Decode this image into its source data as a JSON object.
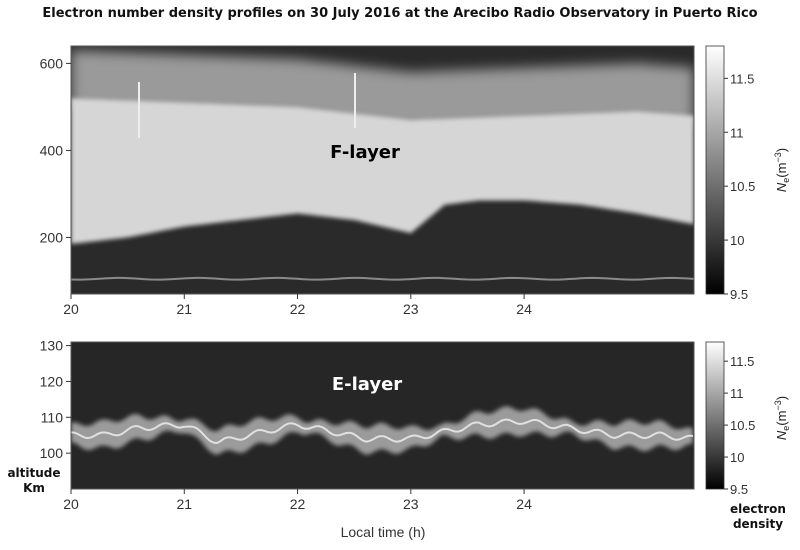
{
  "figure_title": "Electron number density profiles on 30 July 2016 at the Arecibo Radio Observatory in Puerto Rico",
  "side_labels": {
    "altitude": "altitude",
    "altitude_unit": "Km",
    "density": "electron",
    "density2": "density"
  },
  "chart_data": [
    {
      "type": "heatmap",
      "panel": "top",
      "title": "",
      "annotation": "F-layer",
      "xlabel": "",
      "ylabel": "",
      "xlim": [
        20,
        25.5
      ],
      "ylim": [
        70,
        640
      ],
      "x_ticks": [
        20,
        21,
        22,
        23,
        24
      ],
      "y_ticks": [
        200,
        400,
        600
      ],
      "colorscale": "grayscale",
      "colorbar": {
        "label_main": "N",
        "label_sub": "e",
        "label_unit": "(m",
        "label_exp": "−3",
        "label_close": ")",
        "range": [
          9.5,
          11.8
        ],
        "ticks": [
          "9.5",
          "10",
          "10.5",
          "11",
          "11.5"
        ]
      },
      "layer_base_km": {
        "x": [
          20,
          20.5,
          21,
          21.5,
          22,
          22.5,
          23,
          23.3,
          23.6,
          24,
          24.5,
          25,
          25.5
        ],
        "y": [
          185,
          200,
          225,
          240,
          255,
          240,
          210,
          275,
          285,
          285,
          275,
          255,
          230
        ]
      },
      "layer_top_km": {
        "x": [
          20,
          21,
          22,
          23,
          24,
          25,
          25.5
        ],
        "y": [
          520,
          510,
          500,
          470,
          480,
          490,
          480
        ]
      }
    },
    {
      "type": "heatmap",
      "panel": "bottom",
      "title": "",
      "annotation": "E-layer",
      "xlabel": "Local time (h)",
      "ylabel": "",
      "xlim": [
        20,
        25.5
      ],
      "ylim": [
        90,
        131
      ],
      "x_ticks": [
        20,
        21,
        22,
        23,
        24
      ],
      "y_ticks": [
        100,
        110,
        120,
        130
      ],
      "colorscale": "grayscale",
      "colorbar": {
        "label_main": "N",
        "label_sub": "e",
        "label_unit": "(m",
        "label_exp": "−3",
        "label_close": ")",
        "range": [
          9.5,
          11.8
        ],
        "ticks": [
          "9.5",
          "10",
          "10.5",
          "11",
          "11.5"
        ]
      },
      "e_layer_peak_km": {
        "x": [
          20,
          20.3,
          20.6,
          21,
          21.3,
          21.7,
          22,
          22.3,
          22.6,
          23,
          23.3,
          23.6,
          24,
          24.4,
          24.8,
          25.2,
          25.5
        ],
        "y": [
          105,
          105,
          107,
          108,
          103,
          106,
          108,
          106,
          104,
          104,
          106,
          108,
          109,
          107,
          105,
          105,
          104
        ]
      }
    }
  ]
}
